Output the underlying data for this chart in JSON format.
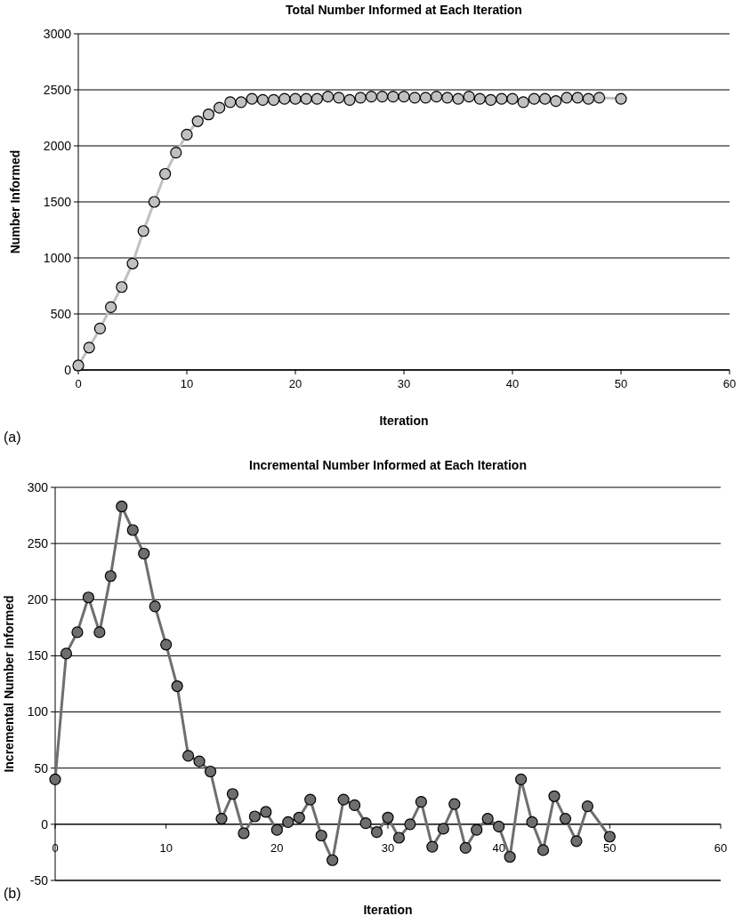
{
  "chart_data": [
    {
      "type": "line",
      "title": "Total Number Informed at Each Iteration",
      "xlabel": "Iteration",
      "ylabel": "Number Informed",
      "annotations": [
        "(a)"
      ],
      "x": [
        0,
        1,
        2,
        3,
        4,
        5,
        6,
        7,
        8,
        9,
        10,
        11,
        12,
        13,
        14,
        15,
        16,
        17,
        18,
        19,
        20,
        21,
        22,
        23,
        24,
        25,
        26,
        27,
        28,
        29,
        30,
        31,
        32,
        33,
        34,
        35,
        36,
        37,
        38,
        39,
        40,
        41,
        42,
        43,
        44,
        45,
        46,
        47,
        48,
        50
      ],
      "series": [
        {
          "color": "#c0c0c0",
          "values": [
            40,
            200,
            370,
            560,
            740,
            950,
            1240,
            1500,
            1750,
            1940,
            2100,
            2220,
            2280,
            2340,
            2390,
            2390,
            2420,
            2410,
            2410,
            2420,
            2420,
            2420,
            2420,
            2440,
            2430,
            2410,
            2430,
            2440,
            2440,
            2440,
            2440,
            2430,
            2430,
            2440,
            2430,
            2420,
            2440,
            2420,
            2410,
            2420,
            2420,
            2390,
            2420,
            2420,
            2400,
            2430,
            2430,
            2420,
            2430,
            2420
          ]
        }
      ],
      "xlim": [
        0,
        60
      ],
      "xticks": [
        0,
        10,
        20,
        30,
        40,
        50,
        60
      ],
      "ylim": [
        0,
        3000
      ],
      "yticks": [
        0,
        500,
        1000,
        1500,
        2000,
        2500,
        3000
      ],
      "grid": "y",
      "marker": "circle",
      "line_style": "solid"
    },
    {
      "type": "line",
      "title": "Incremental Number Informed at Each Iteration",
      "xlabel": "Iteration",
      "ylabel": "Incremental Number Informed",
      "annotations": [
        "(b)"
      ],
      "x": [
        0,
        1,
        2,
        3,
        4,
        5,
        6,
        7,
        8,
        9,
        10,
        11,
        12,
        13,
        14,
        15,
        16,
        17,
        18,
        19,
        20,
        21,
        22,
        23,
        24,
        25,
        26,
        27,
        28,
        29,
        30,
        31,
        32,
        33,
        34,
        35,
        36,
        37,
        38,
        39,
        40,
        41,
        42,
        43,
        44,
        45,
        46,
        47,
        48,
        50
      ],
      "series": [
        {
          "color": "#6e6e6e",
          "values": [
            40,
            152,
            171,
            202,
            171,
            221,
            283,
            262,
            241,
            194,
            160,
            123,
            61,
            56,
            47,
            5,
            27,
            -8,
            7,
            11,
            -5,
            2,
            6,
            22,
            -10,
            -32,
            22,
            17,
            1,
            -7,
            6,
            -12,
            0,
            20,
            -20,
            -4,
            18,
            -21,
            -5,
            5,
            -2,
            -29,
            40,
            2,
            -23,
            25,
            5,
            -15,
            16,
            -11
          ]
        }
      ],
      "xlim": [
        0,
        60
      ],
      "xticks": [
        0,
        10,
        20,
        30,
        40,
        50,
        60
      ],
      "ylim": [
        -50,
        300
      ],
      "yticks": [
        -50,
        0,
        50,
        100,
        150,
        200,
        250,
        300
      ],
      "grid": "y",
      "marker": "circle",
      "line_style": "solid"
    }
  ]
}
